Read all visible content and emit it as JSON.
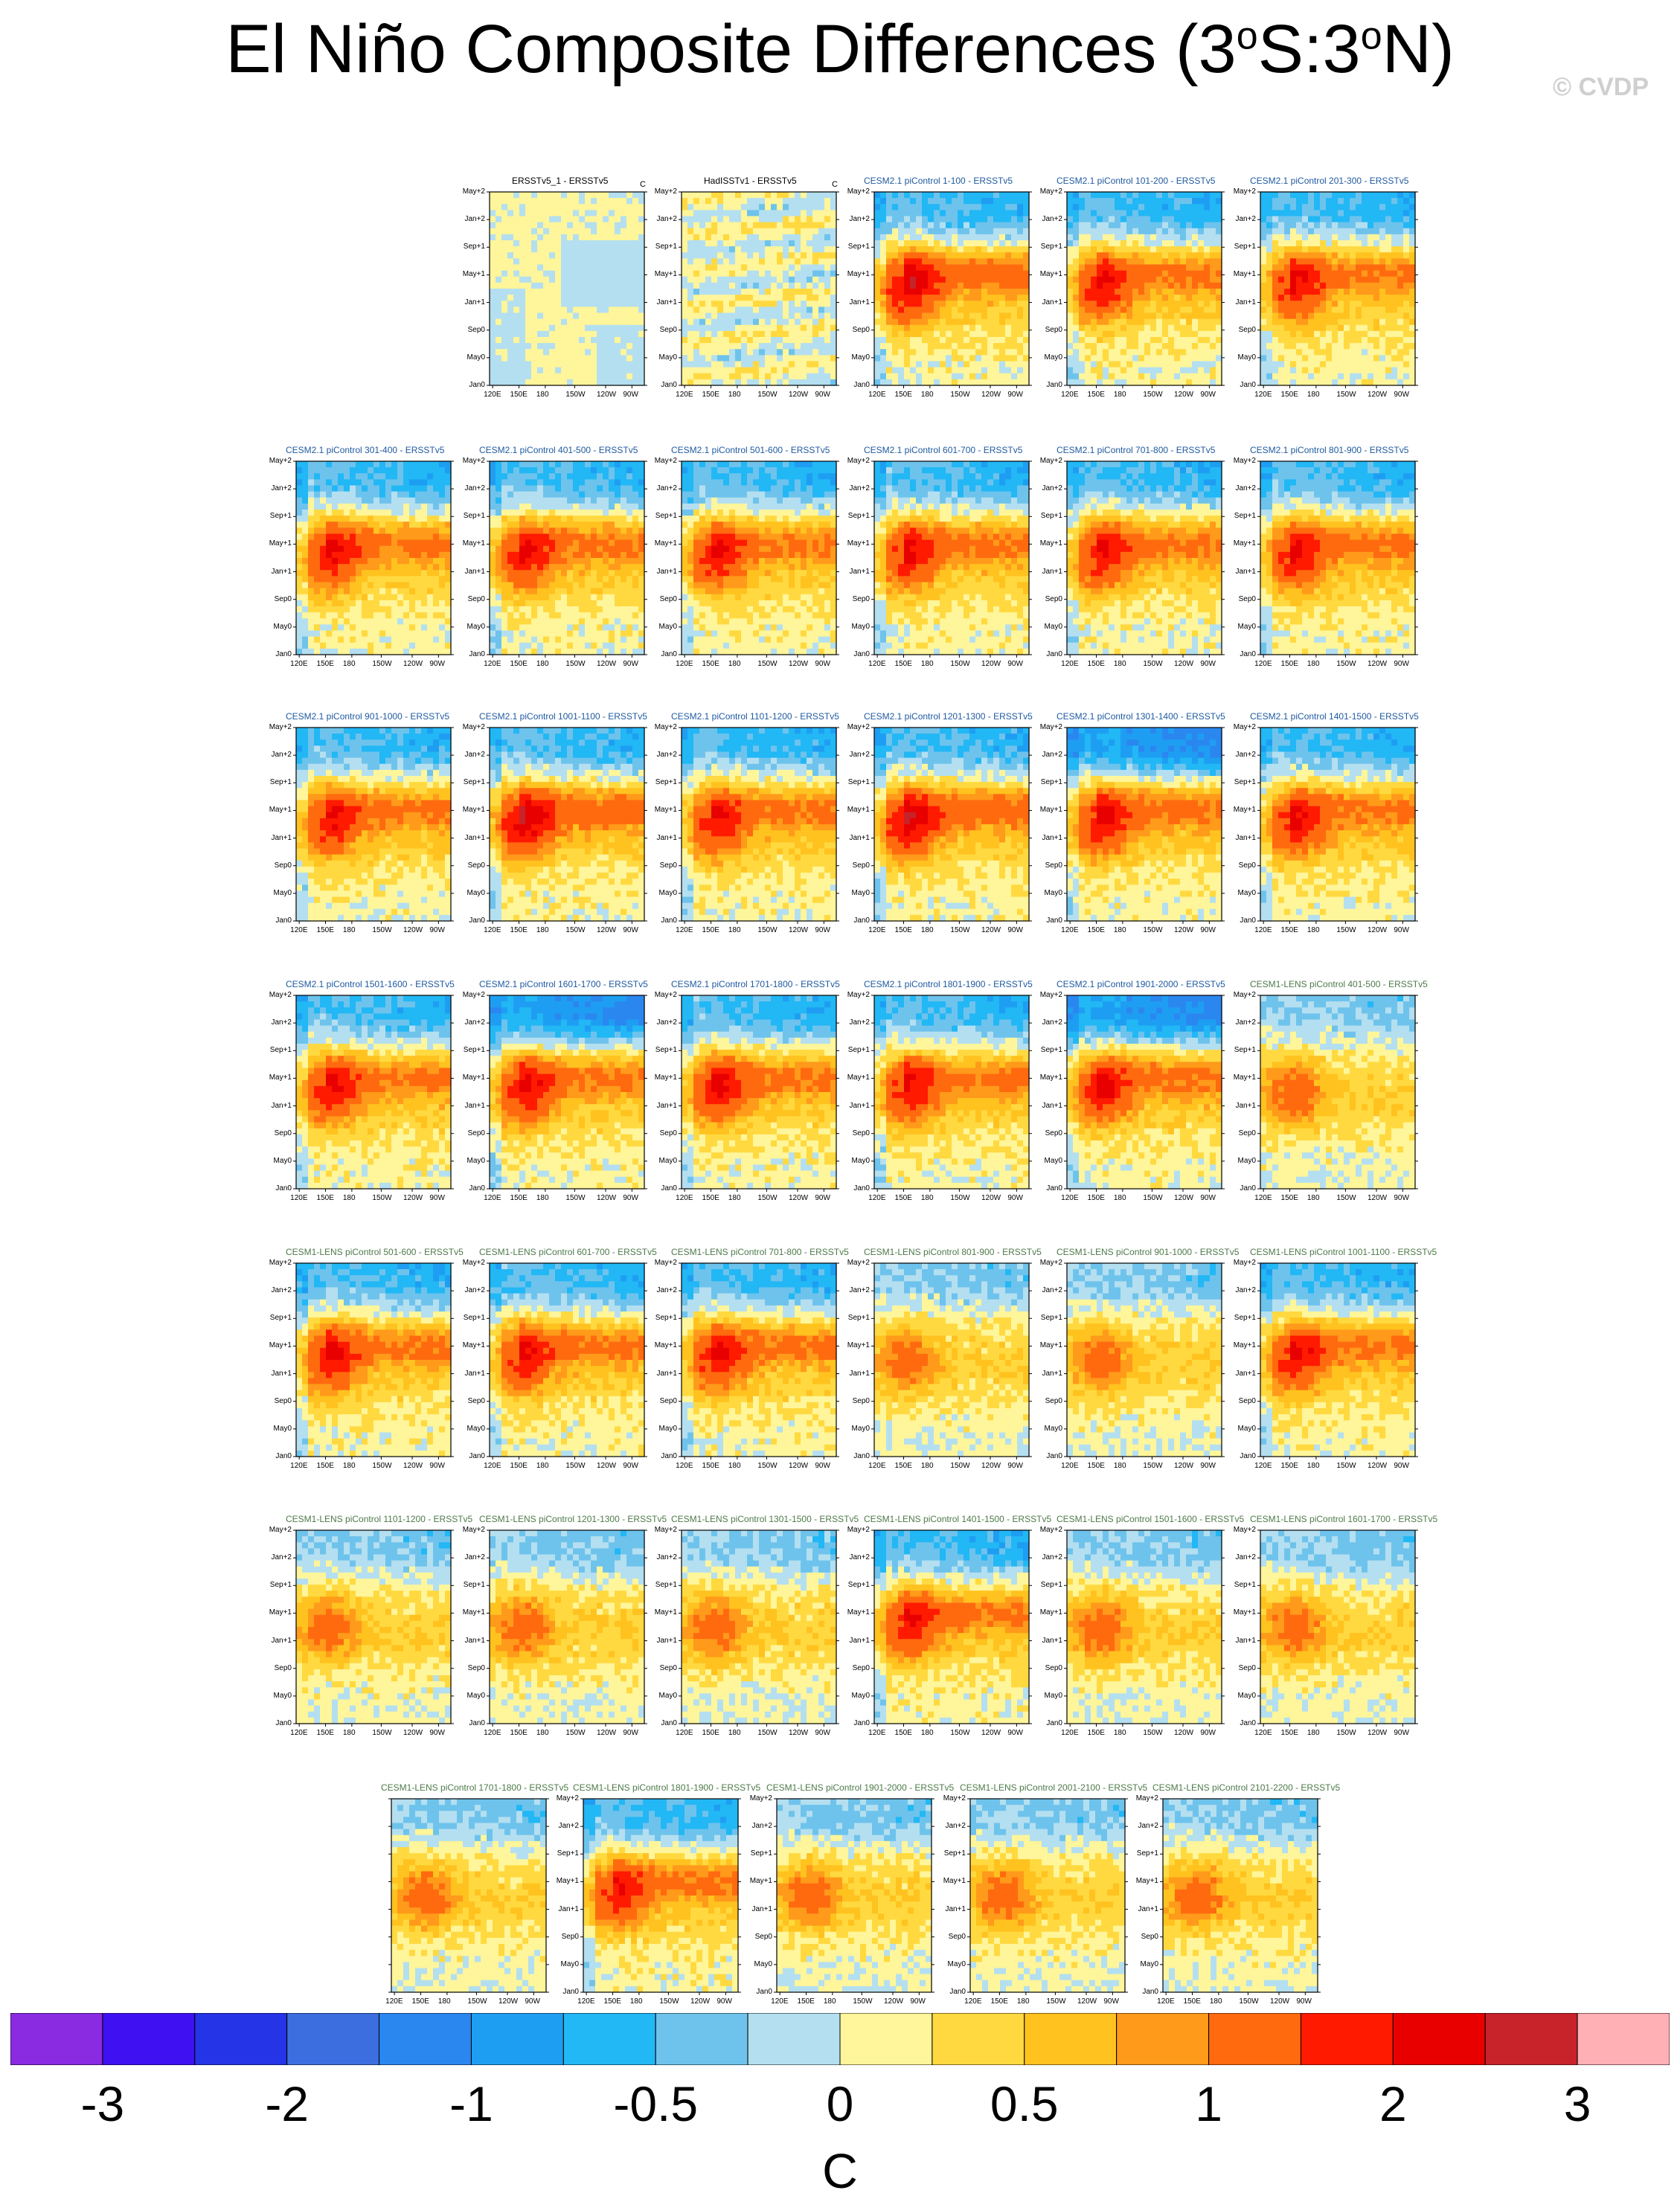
{
  "title": {
    "prefix": "El Niño Composite Differences (3",
    "sup1": "o",
    "mid": "S:3",
    "sup2": "o",
    "suffix": "N)"
  },
  "credit": "© CVDP",
  "colors": {
    "cesm2_title": "#1f5aa0",
    "cesm1_title": "#4e7a4a",
    "obs_title": "#000000",
    "palette": [
      "#8a2be2",
      "#3f11f2",
      "#2434e6",
      "#3c6ee0",
      "#2b87f0",
      "#1e9ef2",
      "#22b7f5",
      "#6ec3ec",
      "#b4dff0",
      "#fff59a",
      "#ffd93f",
      "#ffc21f",
      "#ff9a1a",
      "#ff6a0f",
      "#ff1a00",
      "#e80000",
      "#c8222a",
      "#ffb0b5"
    ]
  },
  "chart_data": {
    "type": "heatmap",
    "panel_count": 41,
    "ytick_labels": [
      "May+2",
      "Jan+2",
      "Sep+1",
      "May+1",
      "Jan+1",
      "Sep0",
      "May0",
      "Jan0"
    ],
    "xtick_labels": [
      "120E",
      "150E",
      "180",
      "150W",
      "120W",
      "90W"
    ],
    "obs_unit_mark": "C",
    "colorbar": {
      "units": "C",
      "labels": [
        "-3",
        "-2",
        "-1",
        "-0.5",
        "0",
        "0.5",
        "1",
        "2",
        "3"
      ],
      "label_bins": [
        1,
        3,
        5,
        7,
        9,
        11,
        13,
        15,
        17
      ]
    },
    "panels": [
      {
        "title": "ERSSTv5_1 - ERSSTv5",
        "group": "obs",
        "ytick": true,
        "unitmark": true,
        "pattern": "obs1"
      },
      {
        "title": "HadISSTv1 - ERSSTv5",
        "group": "obs",
        "ytick": true,
        "unitmark": true,
        "pattern": "obs2"
      },
      {
        "title": "CESM2.1 piControl 1-100 - ERSSTv5",
        "group": "cesm2",
        "ytick": true,
        "pattern": "strong"
      },
      {
        "title": "CESM2.1 piControl 101-200 - ERSSTv5",
        "group": "cesm2",
        "ytick": true,
        "pattern": "medium"
      },
      {
        "title": "CESM2.1 piControl 201-300 - ERSSTv5",
        "group": "cesm2",
        "ytick": true,
        "pattern": "medium"
      },
      {
        "title": "CESM2.1 piControl 301-400 - ERSSTv5",
        "group": "cesm2",
        "ytick": true,
        "pattern": "medium"
      },
      {
        "title": "CESM2.1 piControl 401-500 - ERSSTv5",
        "group": "cesm2",
        "ytick": true,
        "pattern": "medium"
      },
      {
        "title": "CESM2.1 piControl 501-600 - ERSSTv5",
        "group": "cesm2",
        "ytick": true,
        "pattern": "medium"
      },
      {
        "title": "CESM2.1 piControl 601-700 - ERSSTv5",
        "group": "cesm2",
        "ytick": true,
        "pattern": "medium"
      },
      {
        "title": "CESM2.1 piControl 701-800 - ERSSTv5",
        "group": "cesm2",
        "ytick": true,
        "pattern": "medium"
      },
      {
        "title": "CESM2.1 piControl 801-900 - ERSSTv5",
        "group": "cesm2",
        "ytick": true,
        "pattern": "medium"
      },
      {
        "title": "CESM2.1 piControl 901-1000 - ERSSTv5",
        "group": "cesm2",
        "ytick": true,
        "pattern": "medium"
      },
      {
        "title": "CESM2.1 piControl 1001-1100 - ERSSTv5",
        "group": "cesm2",
        "ytick": true,
        "pattern": "strong"
      },
      {
        "title": "CESM2.1 piControl 1101-1200 - ERSSTv5",
        "group": "cesm2",
        "ytick": true,
        "pattern": "medium"
      },
      {
        "title": "CESM2.1 piControl 1201-1300 - ERSSTv5",
        "group": "cesm2",
        "ytick": true,
        "pattern": "strong"
      },
      {
        "title": "CESM2.1 piControl 1301-1400 - ERSSTv5",
        "group": "cesm2",
        "ytick": true,
        "pattern": "strongcold"
      },
      {
        "title": "CESM2.1 piControl 1401-1500 - ERSSTv5",
        "group": "cesm2",
        "ytick": true,
        "pattern": "medium"
      },
      {
        "title": "CESM2.1 piControl 1501-1600 - ERSSTv5",
        "group": "cesm2",
        "ytick": true,
        "pattern": "medium"
      },
      {
        "title": "CESM2.1 piControl 1601-1700 - ERSSTv5",
        "group": "cesm2",
        "ytick": true,
        "pattern": "strongcold"
      },
      {
        "title": "CESM2.1 piControl 1701-1800 - ERSSTv5",
        "group": "cesm2",
        "ytick": true,
        "pattern": "medium"
      },
      {
        "title": "CESM2.1 piControl 1801-1900 - ERSSTv5",
        "group": "cesm2",
        "ytick": true,
        "pattern": "medium"
      },
      {
        "title": "CESM2.1 piControl 1901-2000 - ERSSTv5",
        "group": "cesm2",
        "ytick": true,
        "pattern": "strongcold"
      },
      {
        "title": "CESM1-LENS piControl 401-500 - ERSSTv5",
        "group": "cesm1",
        "ytick": true,
        "pattern": "weak"
      },
      {
        "title": "CESM1-LENS piControl 501-600 - ERSSTv5",
        "group": "cesm1",
        "ytick": true,
        "pattern": "medium"
      },
      {
        "title": "CESM1-LENS piControl 601-700 - ERSSTv5",
        "group": "cesm1",
        "ytick": true,
        "pattern": "medium"
      },
      {
        "title": "CESM1-LENS piControl 701-800 - ERSSTv5",
        "group": "cesm1",
        "ytick": true,
        "pattern": "medium"
      },
      {
        "title": "CESM1-LENS piControl 801-900 - ERSSTv5",
        "group": "cesm1",
        "ytick": true,
        "pattern": "weak"
      },
      {
        "title": "CESM1-LENS piControl 901-1000 - ERSSTv5",
        "group": "cesm1",
        "ytick": true,
        "pattern": "weak"
      },
      {
        "title": "CESM1-LENS piControl 1001-1100 - ERSSTv5",
        "group": "cesm1",
        "ytick": true,
        "pattern": "medium"
      },
      {
        "title": "CESM1-LENS piControl 1101-1200 - ERSSTv5",
        "group": "cesm1",
        "ytick": true,
        "pattern": "weak"
      },
      {
        "title": "CESM1-LENS piControl 1201-1300 - ERSSTv5",
        "group": "cesm1",
        "ytick": true,
        "pattern": "weak"
      },
      {
        "title": "CESM1-LENS piControl 1301-1500 - ERSSTv5",
        "group": "cesm1",
        "ytick": true,
        "pattern": "weak"
      },
      {
        "title": "CESM1-LENS piControl 1401-1500 - ERSSTv5",
        "group": "cesm1",
        "ytick": true,
        "pattern": "medium"
      },
      {
        "title": "CESM1-LENS piControl 1501-1600 - ERSSTv5",
        "group": "cesm1",
        "ytick": true,
        "pattern": "weak"
      },
      {
        "title": "CESM1-LENS piControl 1601-1700 - ERSSTv5",
        "group": "cesm1",
        "ytick": true,
        "pattern": "weak"
      },
      {
        "title": "CESM1-LENS piControl 1701-1800 - ERSSTv5",
        "group": "cesm1",
        "ytick": false,
        "pattern": "weak"
      },
      {
        "title": "CESM1-LENS piControl 1801-1900 - ERSSTv5",
        "group": "cesm1",
        "ytick": true,
        "pattern": "medium"
      },
      {
        "title": "CESM1-LENS piControl 1901-2000 - ERSSTv5",
        "group": "cesm1",
        "ytick": true,
        "pattern": "weak"
      },
      {
        "title": "CESM1-LENS piControl 2001-2100 - ERSSTv5",
        "group": "cesm1",
        "ytick": true,
        "pattern": "weak"
      },
      {
        "title": "CESM1-LENS piControl 2101-2200 - ERSSTv5",
        "group": "cesm1",
        "ytick": true,
        "pattern": "weak"
      },
      {
        "title": "",
        "group": "none",
        "ytick": false,
        "pattern": "none",
        "hidden": true
      }
    ]
  }
}
